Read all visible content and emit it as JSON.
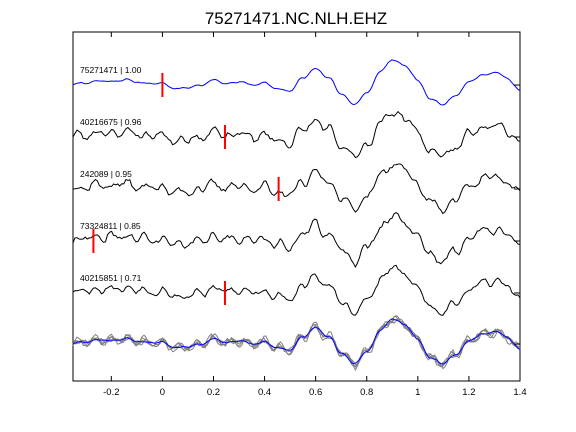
{
  "chart_data": {
    "type": "line",
    "title": "75271471.NC.NLH.EHZ",
    "xlabel": "",
    "ylabel": "",
    "xlim": [
      -0.35,
      1.4
    ],
    "x_ticks": [
      -0.2,
      0,
      0.2,
      0.4,
      0.6,
      0.8,
      1,
      1.2,
      1.4
    ],
    "x_tick_labels": [
      "-0.2",
      "0",
      "0.2",
      "0.4",
      "0.6",
      "0.8",
      "1",
      "1.2",
      "1.4"
    ],
    "grid": false,
    "colors": {
      "reference": "#0000ff",
      "trace": "#000000",
      "overlay": "#808080",
      "pick": "#ff0000"
    },
    "reference_shape": {
      "x": [
        -0.35,
        -0.3,
        -0.25,
        -0.2,
        -0.15,
        -0.1,
        -0.05,
        0,
        0.05,
        0.1,
        0.15,
        0.2,
        0.25,
        0.3,
        0.35,
        0.4,
        0.45,
        0.5,
        0.55,
        0.6,
        0.65,
        0.7,
        0.75,
        0.8,
        0.85,
        0.9,
        0.95,
        1.0,
        1.05,
        1.1,
        1.15,
        1.2,
        1.25,
        1.3,
        1.35,
        1.4
      ],
      "y": [
        0.02,
        0.08,
        0.15,
        0.12,
        0.2,
        0.1,
        0.06,
        0.05,
        -0.12,
        -0.1,
        0.0,
        0.18,
        0.05,
        0.12,
        0.0,
        0.08,
        -0.15,
        -0.2,
        0.25,
        0.6,
        0.25,
        -0.3,
        -0.7,
        -0.3,
        0.45,
        0.9,
        0.7,
        0.15,
        -0.5,
        -0.7,
        -0.35,
        0.1,
        0.35,
        0.45,
        0.25,
        -0.2
      ]
    },
    "series": [
      {
        "label": "75271471 | 1.00",
        "color": "#0000ff",
        "pick_x": 0.0,
        "noise": 0.04,
        "seed": 11
      },
      {
        "label": "40216675 | 0.96",
        "color": "#000000",
        "pick_x": 0.245,
        "noise": 0.2,
        "seed": 23
      },
      {
        "label": "242089 | 0.95",
        "color": "#000000",
        "pick_x": 0.455,
        "noise": 0.2,
        "seed": 37
      },
      {
        "label": "73324811 | 0.85",
        "color": "#000000",
        "pick_x": -0.27,
        "noise": 0.22,
        "seed": 41
      },
      {
        "label": "40215851 | 0.71",
        "color": "#000000",
        "pick_x": 0.245,
        "noise": 0.18,
        "seed": 53
      }
    ],
    "overlay": {
      "series_count": 5,
      "reference_color": "#0000ff",
      "other_color": "#808080"
    }
  }
}
